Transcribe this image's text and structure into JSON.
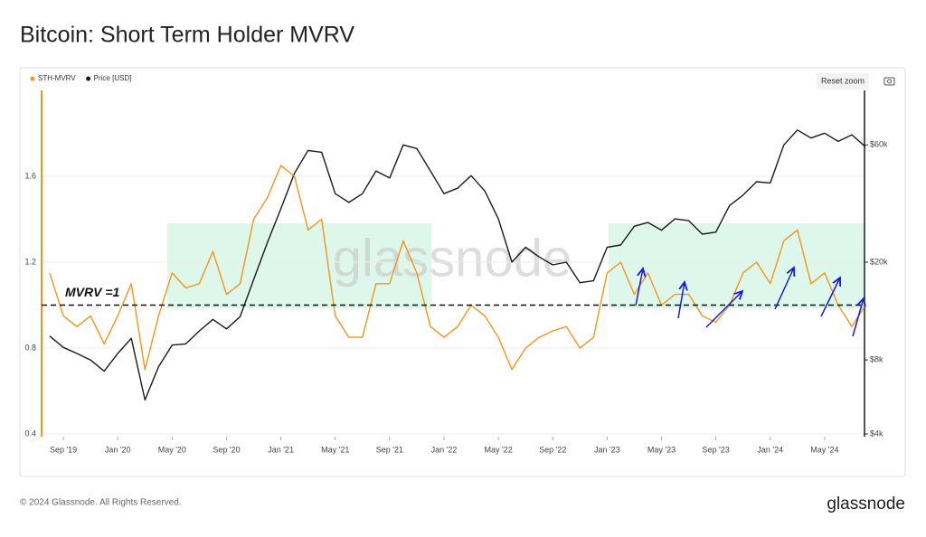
{
  "title": "Bitcoin: Short Term Holder MVRV",
  "reset_zoom": "Reset zoom",
  "watermark": "glassnode",
  "footer": {
    "copyright": "© 2024 Glassnode. All Rights Reserved.",
    "logo": "glassnode"
  },
  "chart_data": {
    "type": "line",
    "x": [
      "2019-08",
      "2019-09",
      "2019-10",
      "2019-11",
      "2019-12",
      "2020-01",
      "2020-02",
      "2020-03",
      "2020-04",
      "2020-05",
      "2020-06",
      "2020-07",
      "2020-08",
      "2020-09",
      "2020-10",
      "2020-11",
      "2020-12",
      "2021-01",
      "2021-02",
      "2021-03",
      "2021-04",
      "2021-05",
      "2021-06",
      "2021-07",
      "2021-08",
      "2021-09",
      "2021-10",
      "2021-11",
      "2021-12",
      "2022-01",
      "2022-02",
      "2022-03",
      "2022-04",
      "2022-05",
      "2022-06",
      "2022-07",
      "2022-08",
      "2022-09",
      "2022-10",
      "2022-11",
      "2022-12",
      "2023-01",
      "2023-02",
      "2023-03",
      "2023-04",
      "2023-05",
      "2023-06",
      "2023-07",
      "2023-08",
      "2023-09",
      "2023-10",
      "2023-11",
      "2023-12",
      "2024-01",
      "2024-02",
      "2024-03",
      "2024-04",
      "2024-05",
      "2024-06",
      "2024-07",
      "2024-08"
    ],
    "series": [
      {
        "name": "STH-MVRV",
        "color": "#f7931a",
        "values": [
          1.15,
          0.95,
          0.9,
          0.95,
          0.82,
          0.95,
          1.1,
          0.7,
          0.95,
          1.15,
          1.08,
          1.1,
          1.25,
          1.05,
          1.1,
          1.4,
          1.5,
          1.65,
          1.6,
          1.35,
          1.4,
          0.95,
          0.85,
          0.85,
          1.1,
          1.1,
          1.3,
          1.15,
          0.9,
          0.85,
          0.9,
          1.0,
          0.95,
          0.85,
          0.7,
          0.8,
          0.85,
          0.88,
          0.9,
          0.8,
          0.85,
          1.15,
          1.2,
          1.05,
          1.15,
          1.0,
          1.05,
          1.05,
          0.95,
          0.92,
          1.0,
          1.15,
          1.2,
          1.1,
          1.3,
          1.35,
          1.1,
          1.15,
          1.0,
          0.9,
          1.0
        ]
      },
      {
        "name": "Price [USD]",
        "color": "#1a1a1a",
        "axis": "y2",
        "values": [
          10000,
          9000,
          8500,
          8000,
          7200,
          8500,
          9800,
          5500,
          7500,
          9200,
          9300,
          10500,
          11700,
          10700,
          12000,
          17000,
          24000,
          33000,
          46000,
          57000,
          56000,
          38000,
          35000,
          38000,
          47000,
          44000,
          60000,
          58000,
          47000,
          38000,
          40000,
          45000,
          39000,
          30000,
          20000,
          23000,
          21000,
          19500,
          20000,
          16500,
          16800,
          23000,
          23500,
          28000,
          29000,
          27000,
          30000,
          29500,
          26000,
          26500,
          34000,
          37500,
          42500,
          42000,
          60000,
          69000,
          64000,
          67000,
          62000,
          66000,
          59000
        ]
      }
    ],
    "xlim": [
      "2019-07",
      "2024-08"
    ],
    "xticks": [
      {
        "value": "2019-09",
        "label": "Sep '19"
      },
      {
        "value": "2020-01",
        "label": "Jan '20"
      },
      {
        "value": "2020-05",
        "label": "May '20"
      },
      {
        "value": "2020-09",
        "label": "Sep '20"
      },
      {
        "value": "2021-01",
        "label": "Jan '21"
      },
      {
        "value": "2021-05",
        "label": "May '21"
      },
      {
        "value": "2021-09",
        "label": "Sep '21"
      },
      {
        "value": "2022-01",
        "label": "Jan '22"
      },
      {
        "value": "2022-05",
        "label": "May '22"
      },
      {
        "value": "2022-09",
        "label": "Sep '22"
      },
      {
        "value": "2023-01",
        "label": "Jan '23"
      },
      {
        "value": "2023-05",
        "label": "May '23"
      },
      {
        "value": "2023-09",
        "label": "Sep '23"
      },
      {
        "value": "2024-01",
        "label": "Jan '24"
      },
      {
        "value": "2024-05",
        "label": "May '24"
      }
    ],
    "ylim": [
      0.4,
      2.0
    ],
    "yticks": [
      0.4,
      0.8,
      1.2,
      1.6
    ],
    "y2lim": [
      4000,
      100000
    ],
    "y2log": true,
    "y2ticks": [
      {
        "value": 4000,
        "label": "$4k"
      },
      {
        "value": 8000,
        "label": "$8k"
      },
      {
        "value": 20000,
        "label": "$20k"
      },
      {
        "value": 60000,
        "label": "$60k"
      }
    ],
    "grid": true,
    "legend": "top-left",
    "reference_line": {
      "value": 1,
      "label": "MVRV =1"
    }
  }
}
